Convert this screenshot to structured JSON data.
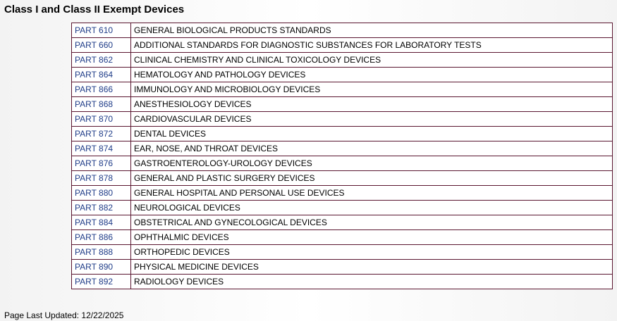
{
  "header": {
    "title": "Class I and Class II Exempt Devices"
  },
  "table": {
    "rows": [
      [
        "PART 610",
        "GENERAL BIOLOGICAL PRODUCTS STANDARDS"
      ],
      [
        "PART 660",
        "ADDITIONAL STANDARDS FOR DIAGNOSTIC SUBSTANCES FOR LABORATORY TESTS"
      ],
      [
        "PART 862",
        "CLINICAL CHEMISTRY AND CLINICAL TOXICOLOGY DEVICES"
      ],
      [
        "PART 864",
        "HEMATOLOGY AND PATHOLOGY DEVICES"
      ],
      [
        "PART 866",
        "IMMUNOLOGY AND MICROBIOLOGY DEVICES"
      ],
      [
        "PART 868",
        "ANESTHESIOLOGY DEVICES"
      ],
      [
        "PART 870",
        "CARDIOVASCULAR DEVICES"
      ],
      [
        "PART 872",
        "DENTAL DEVICES"
      ],
      [
        "PART 874",
        "EAR, NOSE, AND THROAT DEVICES"
      ],
      [
        "PART 876",
        "GASTROENTEROLOGY-UROLOGY DEVICES"
      ],
      [
        "PART 878",
        "GENERAL AND PLASTIC SURGERY DEVICES"
      ],
      [
        "PART 880",
        "GENERAL HOSPITAL AND PERSONAL USE DEVICES"
      ],
      [
        "PART 882",
        "NEUROLOGICAL DEVICES"
      ],
      [
        "PART 884",
        "OBSTETRICAL AND GYNECOLOGICAL DEVICES"
      ],
      [
        "PART 886",
        "OPHTHALMIC DEVICES"
      ],
      [
        "PART 888",
        "ORTHOPEDIC DEVICES"
      ],
      [
        "PART 890",
        "PHYSICAL MEDICINE DEVICES"
      ],
      [
        "PART 892",
        "RADIOLOGY DEVICES"
      ]
    ]
  },
  "footer": {
    "text": "Page Last Updated: 12/22/2025"
  }
}
